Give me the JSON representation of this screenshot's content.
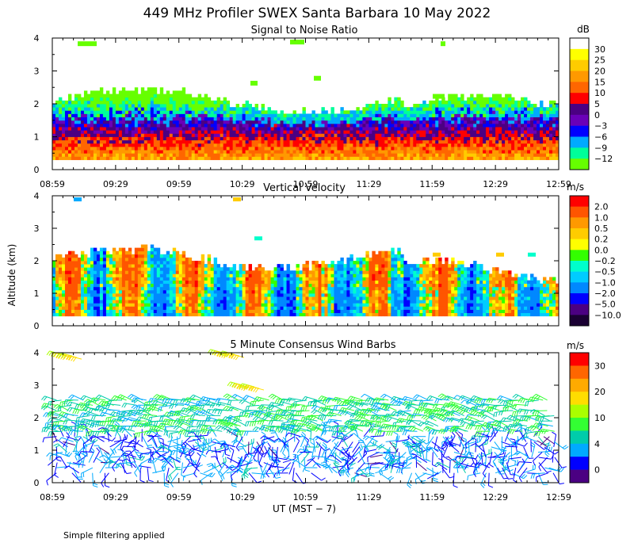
{
  "figure": {
    "title": "449 MHz Profiler SWEX Santa Barbara 10 May 2022",
    "ylabel": "Altitude (km)",
    "xlabel": "UT   (MST − 7)",
    "footnote": "Simple filtering applied"
  },
  "chart_data": [
    {
      "type": "heatmap",
      "title": "Signal to Noise Ratio",
      "xlabel": "UT (MST - 7)",
      "ylabel": "Altitude (km)",
      "x_ticks": [
        "08:59",
        "09:29",
        "09:59",
        "10:29",
        "10:59",
        "11:29",
        "11:59",
        "12:29",
        "12:59"
      ],
      "y_ticks": [
        "0",
        "1",
        "2",
        "3",
        "4"
      ],
      "ylim": [
        0,
        4
      ],
      "colorbar": {
        "unit": "dB",
        "labels": [
          "30",
          "25",
          "20",
          "15",
          "10",
          "5",
          "0",
          "−3",
          "−6",
          "−9",
          "−12"
        ],
        "colors": [
          "#ffffff",
          "#ffff00",
          "#ffcc00",
          "#ff9900",
          "#ff6600",
          "#ff0000",
          "#4b0082",
          "#6a00b8",
          "#0000ff",
          "#00aaff",
          "#00ff99",
          "#66ff00"
        ]
      },
      "profile": [
        {
          "altitude_km_min": 0.3,
          "altitude_km_max": 0.7,
          "dominant_value": 18
        },
        {
          "altitude_km_min": 0.7,
          "altitude_km_max": 1.1,
          "dominant_value": 10
        },
        {
          "altitude_km_min": 1.1,
          "altitude_km_max": 1.4,
          "dominant_value": 3
        },
        {
          "altitude_km_min": 1.4,
          "altitude_km_max": 1.7,
          "dominant_value": -3
        },
        {
          "altitude_km_min": 1.7,
          "altitude_km_max": 2.0,
          "dominant_value": -6
        },
        {
          "altitude_km_min": 2.0,
          "altitude_km_max": 2.4,
          "dominant_value": -11
        }
      ]
    },
    {
      "type": "heatmap",
      "title": "Vertical Velocity",
      "xlabel": "UT (MST - 7)",
      "ylabel": "Altitude (km)",
      "x_ticks": [
        "08:59",
        "09:29",
        "09:59",
        "10:29",
        "10:59",
        "11:29",
        "11:59",
        "12:29",
        "12:59"
      ],
      "y_ticks": [
        "0",
        "1",
        "2",
        "3",
        "4"
      ],
      "ylim": [
        0,
        4
      ],
      "colorbar": {
        "unit": "m/s",
        "labels": [
          "2.0",
          "1.0",
          "0.5",
          "0.2",
          "0.0",
          "−0.2",
          "−0.5",
          "−1.0",
          "−2.0",
          "−5.0",
          "−10.0"
        ],
        "colors": [
          "#ff0000",
          "#ff5500",
          "#ff9900",
          "#ffcc00",
          "#ffff00",
          "#33ff00",
          "#00ffcc",
          "#00ccff",
          "#0088ff",
          "#0000ff",
          "#4b0082",
          "#1a0033"
        ]
      },
      "values_range": [
        -5.0,
        1.0
      ]
    },
    {
      "type": "scatter",
      "title": "5 Minute Consensus Wind Barbs",
      "xlabel": "UT (MST - 7)",
      "ylabel": "Altitude (km)",
      "x_ticks": [
        "08:59",
        "09:29",
        "09:59",
        "10:29",
        "10:59",
        "11:29",
        "11:59",
        "12:29",
        "12:59"
      ],
      "y_ticks": [
        "0",
        "1",
        "2",
        "3",
        "4"
      ],
      "ylim": [
        0,
        4
      ],
      "colorbar": {
        "unit": "m/s",
        "labels": [
          "30",
          "20",
          "10",
          "4",
          "0"
        ],
        "colors": [
          "#ff0000",
          "#ff6600",
          "#ffaa00",
          "#ffdd00",
          "#aaff00",
          "#33ff33",
          "#00ccaa",
          "#00aaff",
          "#0000ff",
          "#4b0082"
        ]
      },
      "typical_speed_ms": {
        "below_1.5km": 5,
        "1.5_to_2.5km": 12,
        "above_2.5km": 18
      }
    }
  ]
}
